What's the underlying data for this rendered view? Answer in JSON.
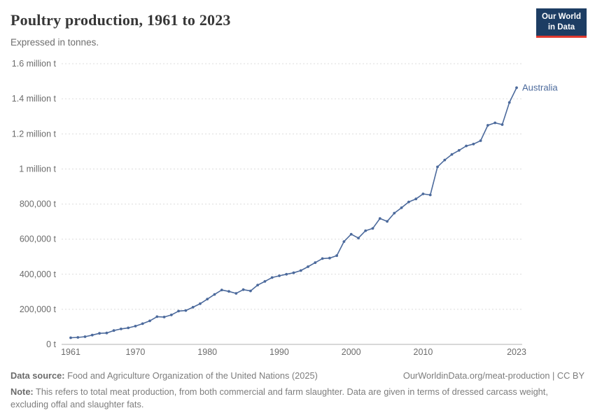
{
  "header": {
    "title": "Poultry production, 1961 to 2023",
    "subtitle": "Expressed in tonnes.",
    "logo": {
      "line1": "Our World",
      "line2": "in Data",
      "bg": "#1d3d63",
      "accent": "#e0392e"
    }
  },
  "chart_data": {
    "type": "line",
    "title": "Poultry production, 1961 to 2023",
    "ylabel": "tonnes",
    "xlabel": "",
    "grid": "horizontal-dashed",
    "legend_position": "end-of-line-label",
    "xlim": [
      1961,
      2023
    ],
    "ylim": [
      0,
      1600000
    ],
    "xticks": [
      1961,
      1970,
      1980,
      1990,
      2000,
      2010,
      2023
    ],
    "yticks": [
      {
        "value": 0,
        "label": "0 t"
      },
      {
        "value": 200000,
        "label": "200,000 t"
      },
      {
        "value": 400000,
        "label": "400,000 t"
      },
      {
        "value": 600000,
        "label": "600,000 t"
      },
      {
        "value": 800000,
        "label": "800,000 t"
      },
      {
        "value": 1000000,
        "label": "1 million t"
      },
      {
        "value": 1200000,
        "label": "1.2 million t"
      },
      {
        "value": 1400000,
        "label": "1.4 million t"
      },
      {
        "value": 1600000,
        "label": "1.6 million t"
      }
    ],
    "series": [
      {
        "name": "Australia",
        "color": "#4c6a9c",
        "x": [
          1961,
          1962,
          1963,
          1964,
          1965,
          1966,
          1967,
          1968,
          1969,
          1970,
          1971,
          1972,
          1973,
          1974,
          1975,
          1976,
          1977,
          1978,
          1979,
          1980,
          1981,
          1982,
          1983,
          1984,
          1985,
          1986,
          1987,
          1988,
          1989,
          1990,
          1991,
          1992,
          1993,
          1994,
          1995,
          1996,
          1997,
          1998,
          1999,
          2000,
          2001,
          2002,
          2003,
          2004,
          2005,
          2006,
          2007,
          2008,
          2009,
          2010,
          2011,
          2012,
          2013,
          2014,
          2015,
          2016,
          2017,
          2018,
          2019,
          2020,
          2021,
          2022,
          2023
        ],
        "values": [
          38000,
          40000,
          44000,
          53000,
          63000,
          65000,
          79000,
          88000,
          94000,
          104000,
          118000,
          134000,
          158000,
          156000,
          168000,
          190000,
          193000,
          212000,
          232000,
          258000,
          285000,
          310000,
          302000,
          291000,
          312000,
          305000,
          338000,
          359000,
          381000,
          391000,
          400000,
          408000,
          421000,
          443000,
          466000,
          489000,
          492000,
          506000,
          586000,
          628000,
          606000,
          648000,
          661000,
          718000,
          701000,
          748000,
          779000,
          812000,
          829000,
          858000,
          852000,
          1012000,
          1051000,
          1083000,
          1106000,
          1131000,
          1142000,
          1161000,
          1249000,
          1263000,
          1253000,
          1379000,
          1463000
        ]
      }
    ]
  },
  "footer": {
    "source_label": "Data source:",
    "source_text": "Food and Agriculture Organization of the United Nations (2025)",
    "link_text": "OurWorldinData.org/meat-production | CC BY",
    "note_label": "Note:",
    "note_text": "This refers to total meat production, from both commercial and farm slaughter. Data are given in terms of dressed carcass weight, excluding offal and slaughter fats."
  }
}
